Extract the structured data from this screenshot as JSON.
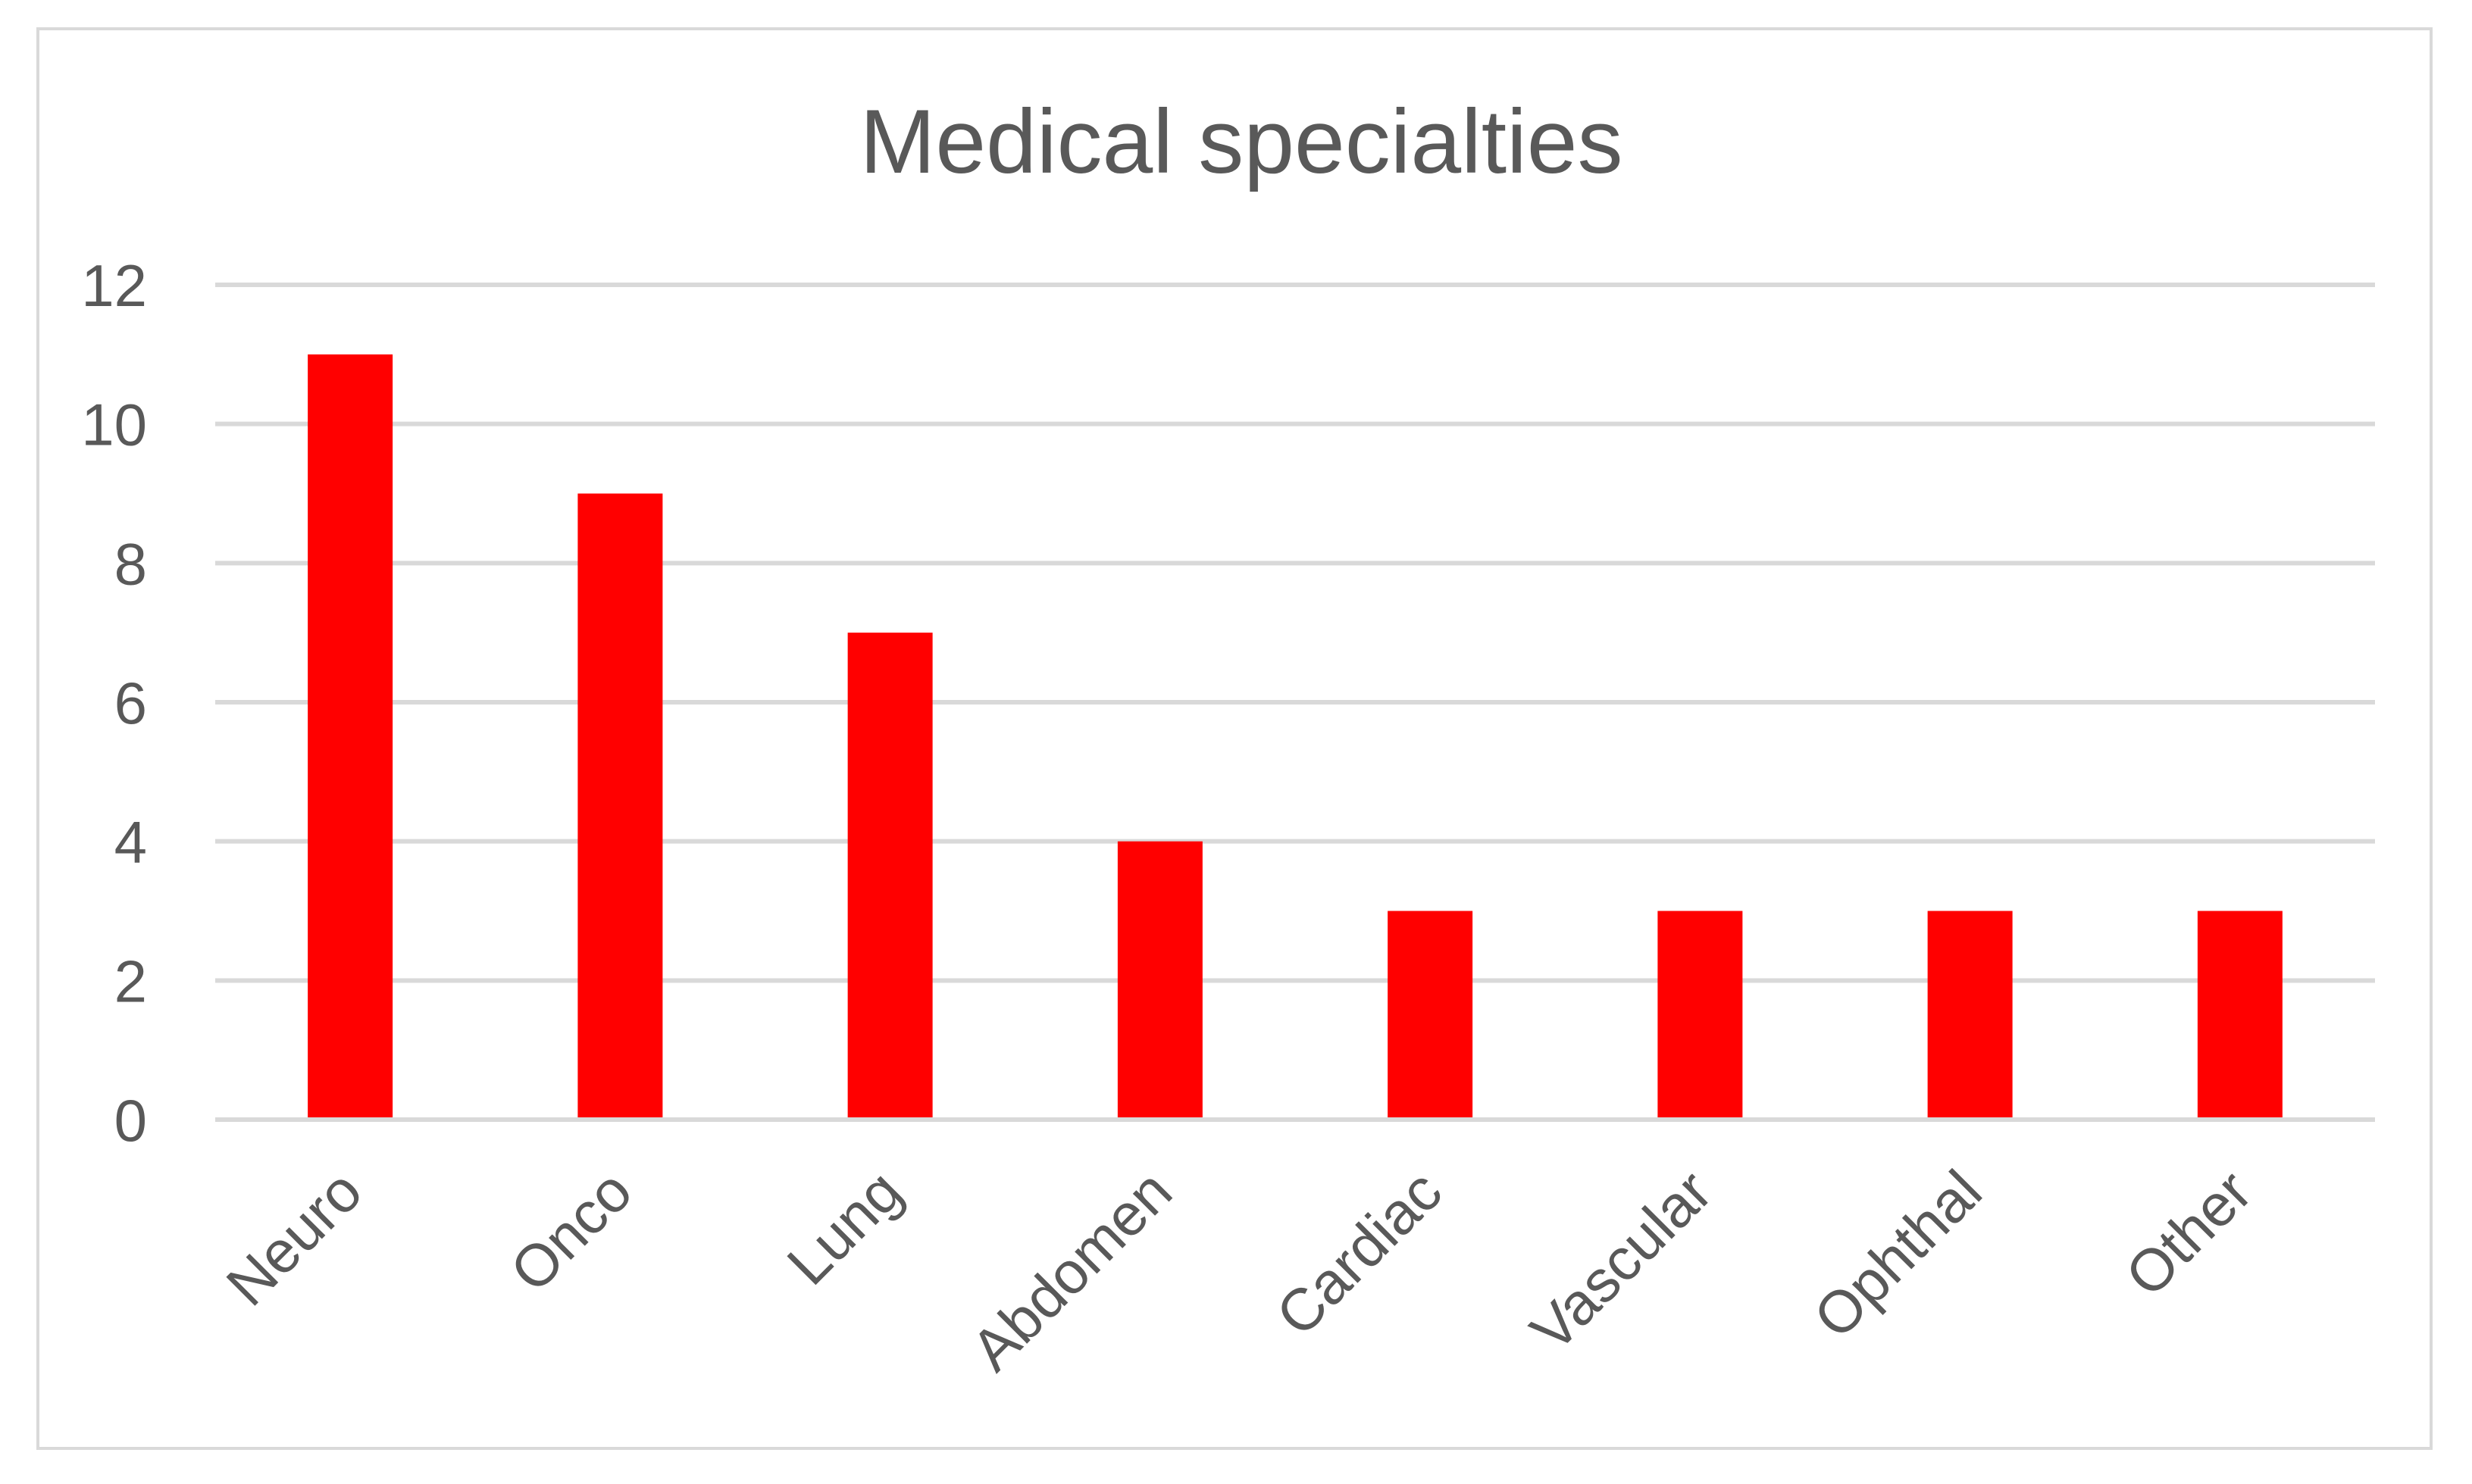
{
  "chart_data": {
    "type": "bar",
    "title": "Medical specialties",
    "xlabel": "",
    "ylabel": "",
    "categories": [
      "Neuro",
      "Onco",
      "Lung",
      "Abdomen",
      "Cardiac",
      "Vascular",
      "Ophthal",
      "Other"
    ],
    "values": [
      11,
      9,
      7,
      4,
      3,
      3,
      3,
      3
    ],
    "ylim": [
      0,
      12
    ],
    "yticks": [
      0,
      2,
      4,
      6,
      8,
      10,
      12
    ],
    "grid": true,
    "legend": "none",
    "colors": {
      "bar": "#ff0000",
      "grid": "#d9d9d9",
      "text": "#595959",
      "border": "#d9d9d9"
    }
  }
}
